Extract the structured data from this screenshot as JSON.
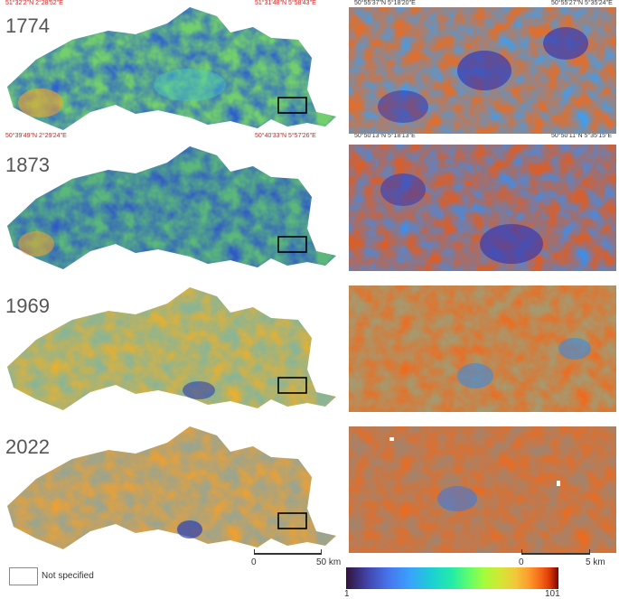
{
  "panels": [
    {
      "year": "1774"
    },
    {
      "year": "1873"
    },
    {
      "year": "1969"
    },
    {
      "year": "2022"
    }
  ],
  "coords": {
    "top_left": "51°32'2\"N 2°28'52\"E",
    "top_right": "51°31'48\"N 5°58'43\"E",
    "bottom_left": "50°39'49\"N 2°29'24\"E",
    "bottom_right": "50°40'33\"N 5°57'26\"E",
    "inset_top_left": "50°55'37\"N 5°18'20\"E",
    "inset_top_right": "50°55'27\"N 5°35'24\"E",
    "inset_bottom_left": "50°50'13\"N 5°18'13\"E",
    "inset_bottom_right": "50°50'11\"N 5°35'15\"E"
  },
  "scalebar_main": {
    "start": "0",
    "end": "50 km"
  },
  "scalebar_inset": {
    "start": "0",
    "end": "5 km"
  },
  "legend": {
    "label": "Not specified"
  },
  "colorbar": {
    "min": "1",
    "max": "101"
  },
  "colors": {
    "low": "#30123b",
    "mid": "#61fc6c",
    "high": "#7a0403"
  }
}
